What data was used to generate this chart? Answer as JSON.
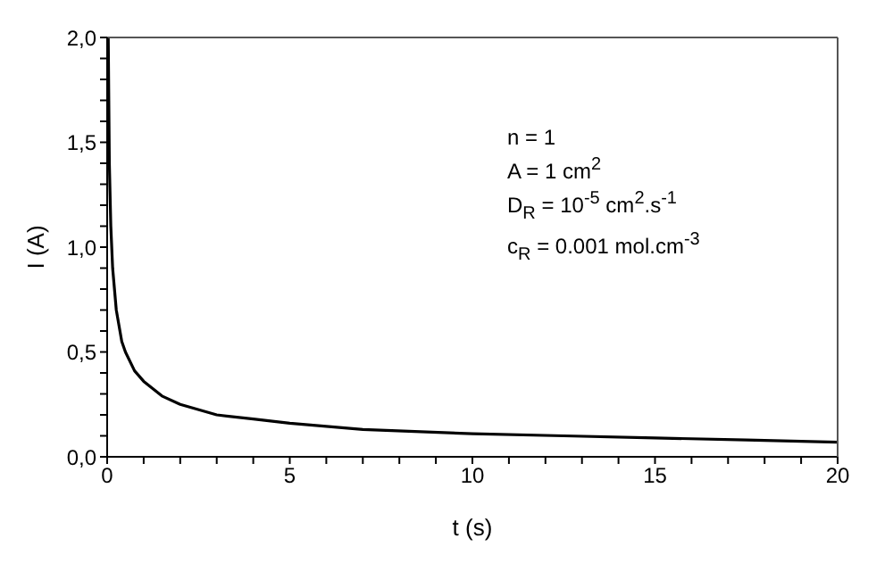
{
  "chart_data": {
    "type": "line",
    "xlabel": "t (s)",
    "ylabel": "I (A)",
    "x": [
      0.03,
      0.06,
      0.1,
      0.15,
      0.25,
      0.4,
      0.5,
      0.75,
      1,
      1.5,
      2,
      3,
      4,
      5,
      7,
      10,
      12.5,
      15,
      17.5,
      20
    ],
    "series": [
      {
        "color": "#000000",
        "values": [
          2.0,
          1.4,
          1.1,
          0.9,
          0.7,
          0.55,
          0.5,
          0.41,
          0.36,
          0.29,
          0.25,
          0.2,
          0.18,
          0.16,
          0.13,
          0.11,
          0.1,
          0.09,
          0.08,
          0.07
        ]
      }
    ],
    "xlim": [
      0,
      20
    ],
    "ylim": [
      0,
      2
    ],
    "xticks": [
      0,
      {
        "value": 1,
        "label": null
      },
      {
        "value": 2,
        "label": null
      },
      {
        "value": 3,
        "label": null
      },
      {
        "value": 4,
        "label": null
      },
      5,
      {
        "value": 6,
        "label": null
      },
      {
        "value": 7,
        "label": null
      },
      {
        "value": 8,
        "label": null
      },
      {
        "value": 9,
        "label": null
      },
      10,
      {
        "value": 11,
        "label": null
      },
      {
        "value": 12,
        "label": null
      },
      {
        "value": 13,
        "label": null
      },
      {
        "value": 14,
        "label": null
      },
      15,
      {
        "value": 16,
        "label": null
      },
      {
        "value": 17,
        "label": null
      },
      {
        "value": 18,
        "label": null
      },
      {
        "value": 19,
        "label": null
      },
      20
    ],
    "yticks": [
      {
        "value": 0,
        "label": "0,0"
      },
      {
        "value": 0.1,
        "label": null
      },
      {
        "value": 0.2,
        "label": null
      },
      {
        "value": 0.3,
        "label": null
      },
      {
        "value": 0.4,
        "label": null
      },
      {
        "value": 0.5,
        "label": "0,5"
      },
      {
        "value": 0.6,
        "label": null
      },
      {
        "value": 0.7,
        "label": null
      },
      {
        "value": 0.8,
        "label": null
      },
      {
        "value": 0.9,
        "label": null
      },
      {
        "value": 1,
        "label": "1,0"
      },
      {
        "value": 1.1,
        "label": null
      },
      {
        "value": 1.2,
        "label": null
      },
      {
        "value": 1.3,
        "label": null
      },
      {
        "value": 1.4,
        "label": null
      },
      {
        "value": 1.5,
        "label": "1,5"
      },
      {
        "value": 1.6,
        "label": null
      },
      {
        "value": 1.7,
        "label": null
      },
      {
        "value": 1.8,
        "label": null
      },
      {
        "value": 1.9,
        "label": null
      },
      {
        "value": 2,
        "label": "2,0"
      }
    ],
    "grid": false,
    "marker": "none",
    "line_style": "solid",
    "annotations": [
      "n = 1",
      "A = 1 cm$^{2}$",
      "D$_{R}$ = 10$^{-5}$ cm$^{2}$.s$^{-1}$",
      "c$_{R}$ = 0.001 mol.cm$^{-3}$"
    ]
  }
}
